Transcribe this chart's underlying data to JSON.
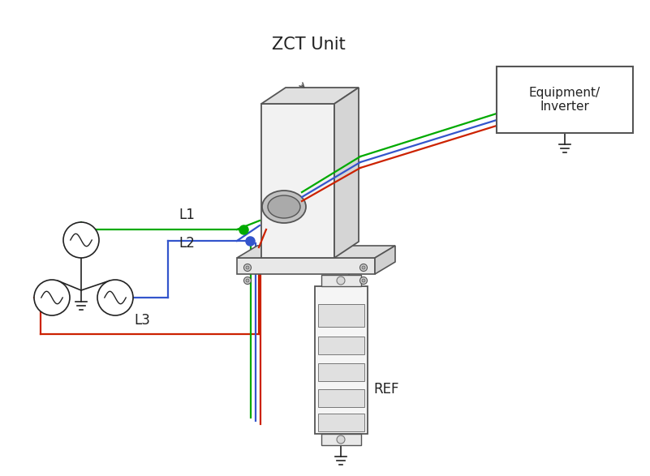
{
  "colors": {
    "green": "#00aa00",
    "blue": "#3355cc",
    "red": "#cc2200",
    "black": "#222222",
    "gray": "#777777",
    "light_gray": "#cccccc",
    "box_edge": "#555555",
    "zct_face": "#f2f2f2",
    "zct_top": "#e0e0e0",
    "zct_right": "#d5d5d5",
    "base_color": "#e8e8e8"
  },
  "labels": {
    "zct_unit": "ZCT Unit",
    "equipment": "Equipment/\nInverter",
    "L1": "L1",
    "L2": "L2",
    "L3": "L3",
    "REF": "REF"
  },
  "line_width": 1.6
}
